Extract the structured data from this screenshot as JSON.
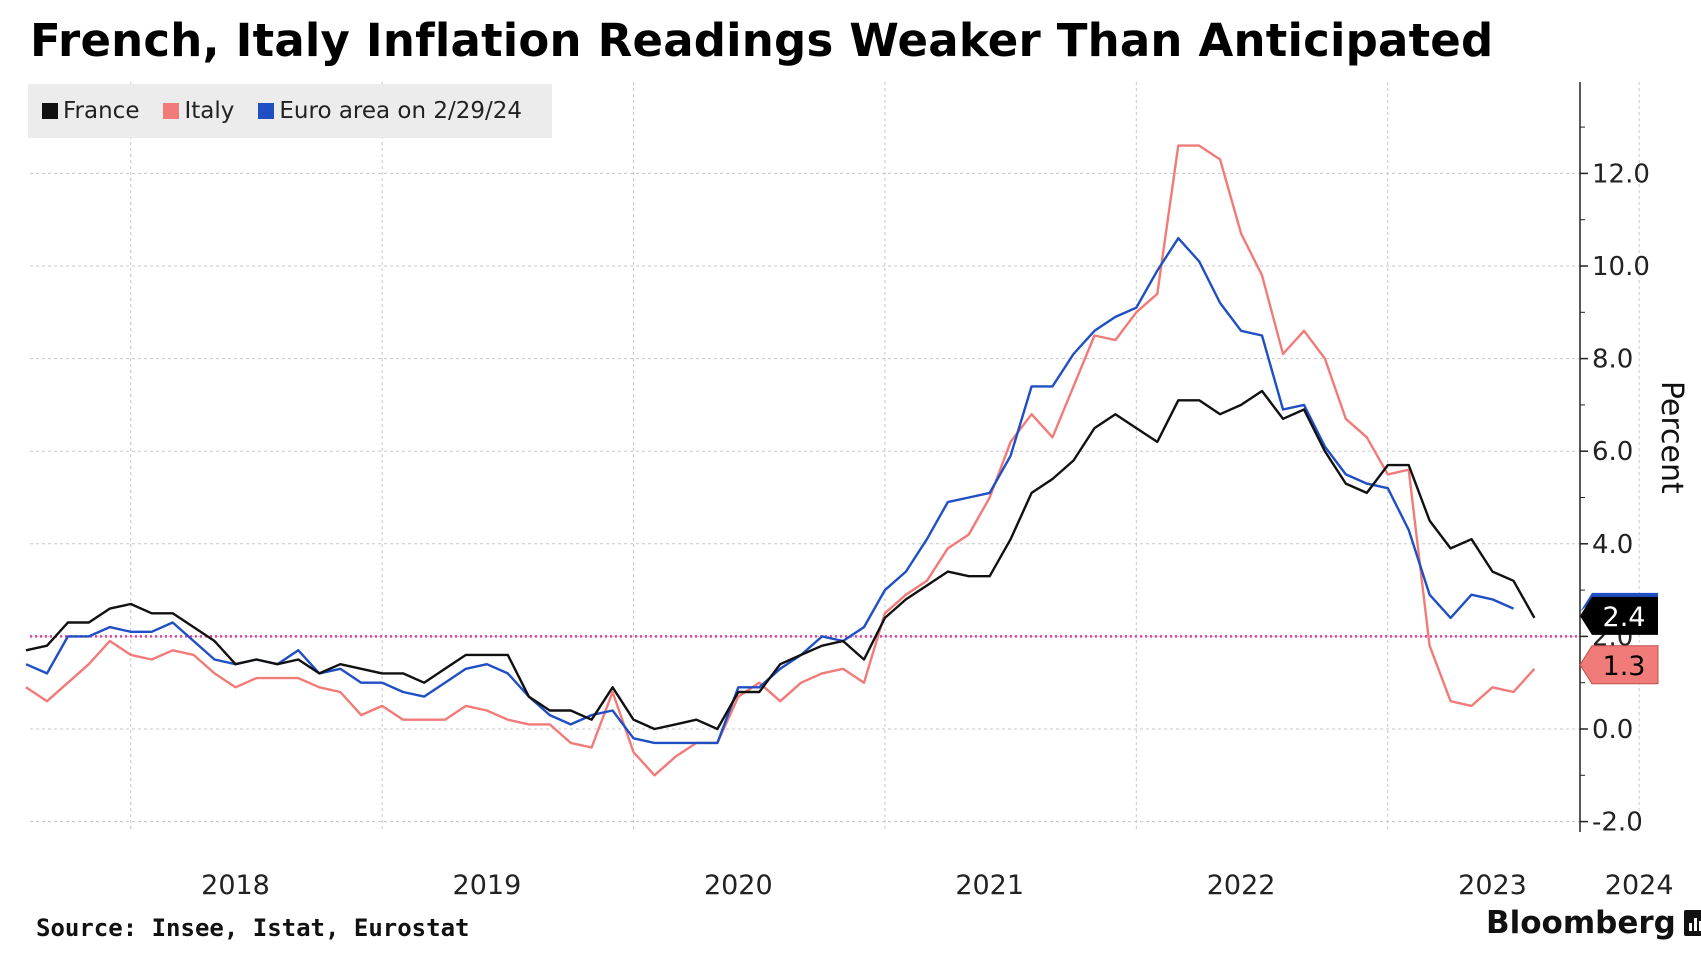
{
  "chart_data": {
    "type": "line",
    "title": "French, Italy Inflation Readings Weaker Than Anticipated",
    "ylabel": "Percent",
    "ylim": [
      -2.0,
      14.0
    ],
    "yticks": [
      -2.0,
      0.0,
      2.0,
      4.0,
      6.0,
      8.0,
      10.0,
      12.0
    ],
    "ytick_labels": [
      "-2.0",
      "0.0",
      "2.0",
      "4.0",
      "6.0",
      "8.0",
      "10.0",
      "12.0"
    ],
    "x_start": "2017-08",
    "x_end": "2024-02",
    "xtick_labels": [
      "2018",
      "2019",
      "2020",
      "2021",
      "2022",
      "2023",
      "2024"
    ],
    "x_label_months": [
      "2018-06",
      "2019-06",
      "2020-06",
      "2021-06",
      "2022-06",
      "2023-06",
      "2024-01"
    ],
    "legend_position": "top-left",
    "grid": true,
    "reference_line": {
      "value": 2.0,
      "color": "#e040a0",
      "style": "dotted"
    },
    "end_labels": [
      {
        "text": "2.4",
        "value": 2.4,
        "background": "#000000",
        "color": "#ffffff"
      },
      {
        "text": "1.3",
        "value": 1.3,
        "background": "#f07b78",
        "color": "#000000"
      }
    ],
    "series": [
      {
        "name": "France",
        "color": "#111111",
        "start": "2017-08",
        "values": [
          1.7,
          1.8,
          2.3,
          2.3,
          2.6,
          2.7,
          2.5,
          2.5,
          2.2,
          1.9,
          1.4,
          1.5,
          1.4,
          1.5,
          1.2,
          1.4,
          1.3,
          1.2,
          1.2,
          1.0,
          1.3,
          1.6,
          1.6,
          1.6,
          0.7,
          0.4,
          0.4,
          0.2,
          0.9,
          0.2,
          0.0,
          0.1,
          0.2,
          0.0,
          0.8,
          0.8,
          1.4,
          1.6,
          1.8,
          1.9,
          1.5,
          2.4,
          2.8,
          3.1,
          3.4,
          3.3,
          3.3,
          4.1,
          5.1,
          5.4,
          5.8,
          6.5,
          6.8,
          6.5,
          6.2,
          7.1,
          7.1,
          6.8,
          7.0,
          7.3,
          6.7,
          6.9,
          6.0,
          5.3,
          5.1,
          5.7,
          5.7,
          4.5,
          3.9,
          4.1,
          3.4,
          3.2,
          2.4
        ]
      },
      {
        "name": "Italy",
        "color": "#f07b78",
        "start": "2017-08",
        "values": [
          0.9,
          0.6,
          1.0,
          1.4,
          1.9,
          1.6,
          1.5,
          1.7,
          1.6,
          1.2,
          0.9,
          1.1,
          1.1,
          1.1,
          0.9,
          0.8,
          0.3,
          0.5,
          0.2,
          0.2,
          0.2,
          0.5,
          0.4,
          0.2,
          0.1,
          0.1,
          -0.3,
          -0.4,
          0.8,
          -0.5,
          -1.0,
          -0.6,
          -0.3,
          -0.3,
          0.7,
          1.0,
          0.6,
          1.0,
          1.2,
          1.3,
          1.0,
          2.5,
          2.9,
          3.2,
          3.9,
          4.2,
          5.0,
          6.2,
          6.8,
          6.3,
          7.4,
          8.5,
          8.4,
          9.0,
          9.4,
          12.6,
          12.6,
          12.3,
          10.7,
          9.8,
          8.1,
          8.6,
          8.0,
          6.7,
          6.3,
          5.5,
          5.6,
          1.8,
          0.6,
          0.5,
          0.9,
          0.8,
          1.3
        ]
      },
      {
        "name": "Euro area on 2/29/24",
        "color": "#1f4fc2",
        "start": "2017-08",
        "values": [
          1.4,
          1.2,
          2.0,
          2.0,
          2.2,
          2.1,
          2.1,
          2.3,
          1.9,
          1.5,
          1.4,
          1.5,
          1.4,
          1.7,
          1.2,
          1.3,
          1.0,
          1.0,
          0.8,
          0.7,
          1.0,
          1.3,
          1.4,
          1.2,
          0.7,
          0.3,
          0.1,
          0.3,
          0.4,
          -0.2,
          -0.3,
          -0.3,
          -0.3,
          -0.3,
          0.9,
          0.9,
          1.3,
          1.6,
          2.0,
          1.9,
          2.2,
          3.0,
          3.4,
          4.1,
          4.9,
          5.0,
          5.1,
          5.9,
          7.4,
          7.4,
          8.1,
          8.6,
          8.9,
          9.1,
          9.9,
          10.6,
          10.1,
          9.2,
          8.6,
          8.5,
          6.9,
          7.0,
          6.1,
          5.5,
          5.3,
          5.2,
          4.3,
          2.9,
          2.4,
          2.9,
          2.8,
          2.6
        ]
      }
    ]
  },
  "source": "Source: Insee, Istat, Eurostat",
  "brand": "Bloomberg"
}
